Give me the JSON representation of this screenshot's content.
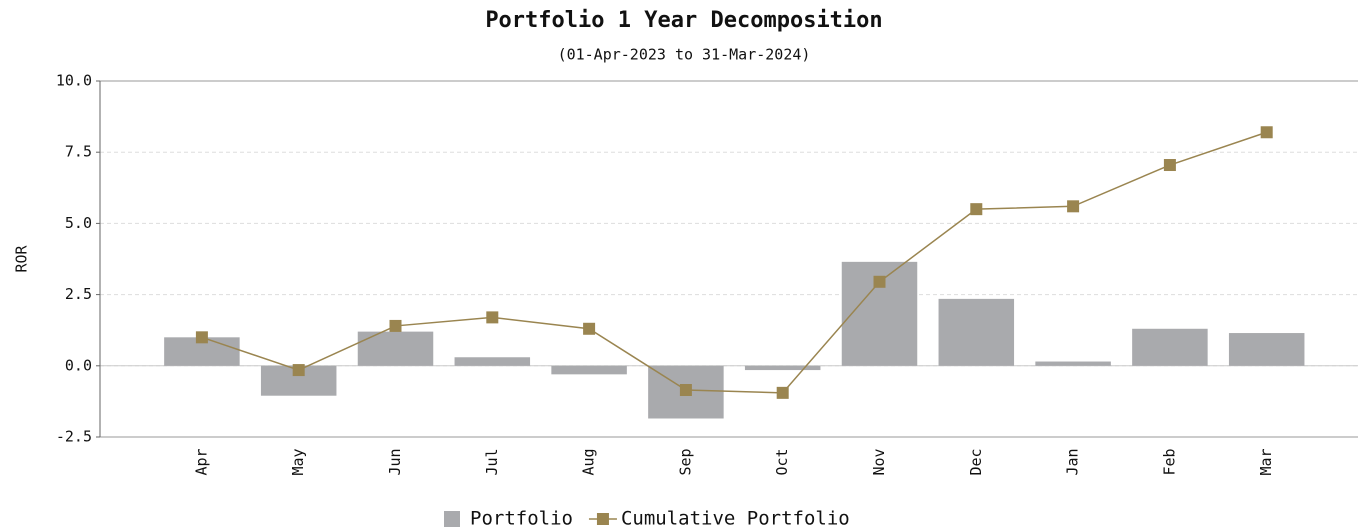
{
  "chart_data": {
    "type": "bar",
    "title": "Portfolio 1 Year Decomposition",
    "subtitle": "(01-Apr-2023 to 31-Mar-2024)",
    "y_label": "ROR",
    "categories": [
      "Apr",
      "May",
      "Jun",
      "Jul",
      "Aug",
      "Sep",
      "Oct",
      "Nov",
      "Dec",
      "Jan",
      "Feb",
      "Mar"
    ],
    "series": [
      {
        "name": "Portfolio",
        "type": "bar",
        "color": "#a9aaad",
        "values": [
          1.0,
          -1.05,
          1.2,
          0.3,
          -0.3,
          -1.85,
          -0.15,
          3.65,
          2.35,
          0.15,
          1.3,
          1.15
        ]
      },
      {
        "name": "Cumulative Portfolio",
        "type": "line",
        "color": "#9a8550",
        "values": [
          1.0,
          -0.15,
          1.4,
          1.7,
          1.3,
          -0.85,
          -0.95,
          2.95,
          5.5,
          5.6,
          7.05,
          8.2
        ]
      }
    ],
    "ylim": [
      -2.5,
      10.0
    ],
    "yticks": [
      {
        "value": -2.5,
        "label": "-2.5"
      },
      {
        "value": 0,
        "label": "0.0"
      },
      {
        "value": 2.5,
        "label": "2.5"
      },
      {
        "value": 5,
        "label": "5.0"
      },
      {
        "value": 7.5,
        "label": "7.5"
      },
      {
        "value": 10,
        "label": "10.0"
      }
    ],
    "grid": true,
    "legend": "bottom"
  }
}
